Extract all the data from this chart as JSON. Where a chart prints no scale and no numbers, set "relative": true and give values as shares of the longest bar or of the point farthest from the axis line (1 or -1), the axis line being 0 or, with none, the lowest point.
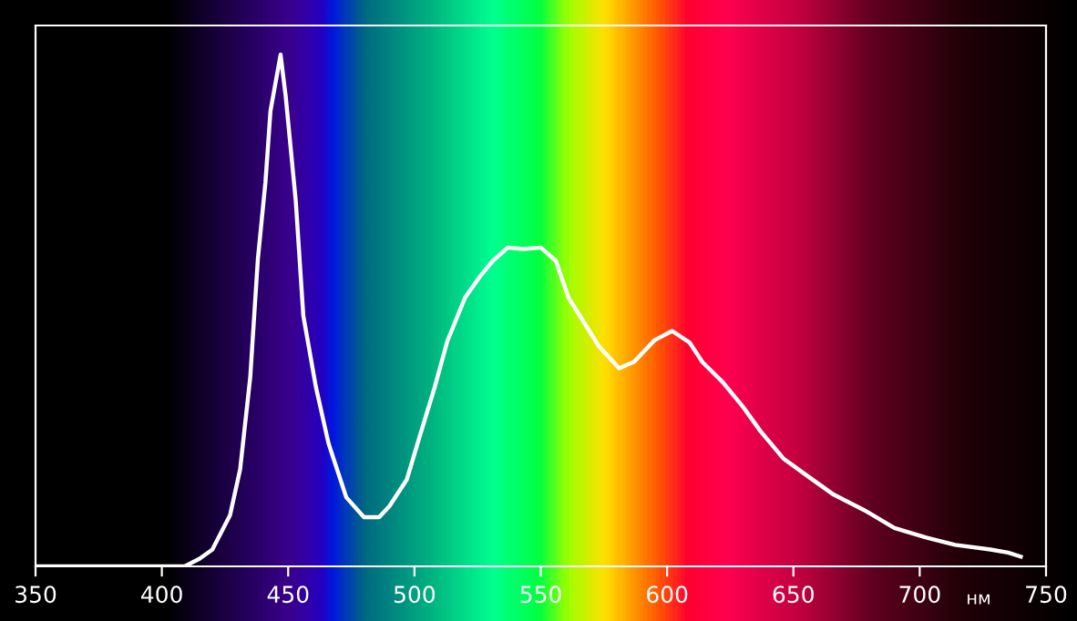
{
  "chart_data": {
    "type": "line",
    "relative": true,
    "xlabel": "нм",
    "xlim": [
      350,
      750
    ],
    "xticks": [
      350,
      400,
      450,
      500,
      550,
      600,
      650,
      700,
      750
    ],
    "grid": false,
    "legend": false,
    "marker": "none",
    "line_style": "solid",
    "series": [
      {
        "color": "#ffffff",
        "x": [
          350,
          380,
          409,
          415,
          420,
          427,
          431,
          435,
          438,
          441,
          443,
          447,
          449,
          453,
          456,
          461,
          466,
          473,
          480,
          486,
          490,
          497,
          502,
          508,
          513,
          520,
          526,
          531,
          537,
          543,
          550,
          556,
          561,
          573,
          581,
          587,
          595,
          602,
          609,
          614,
          622,
          630,
          637,
          646,
          656,
          666,
          678,
          690,
          702,
          714,
          728,
          735,
          740
        ],
        "values": [
          0,
          0,
          0,
          0.015,
          0.033,
          0.1,
          0.19,
          0.37,
          0.6,
          0.75,
          0.89,
          1,
          0.92,
          0.715,
          0.49,
          0.35,
          0.24,
          0.135,
          0.096,
          0.096,
          0.117,
          0.17,
          0.253,
          0.35,
          0.44,
          0.525,
          0.567,
          0.597,
          0.623,
          0.62,
          0.623,
          0.597,
          0.525,
          0.43,
          0.387,
          0.4,
          0.442,
          0.46,
          0.437,
          0.399,
          0.36,
          0.312,
          0.264,
          0.211,
          0.175,
          0.14,
          0.11,
          0.075,
          0.057,
          0.042,
          0.033,
          0.027,
          0.019
        ]
      }
    ]
  }
}
